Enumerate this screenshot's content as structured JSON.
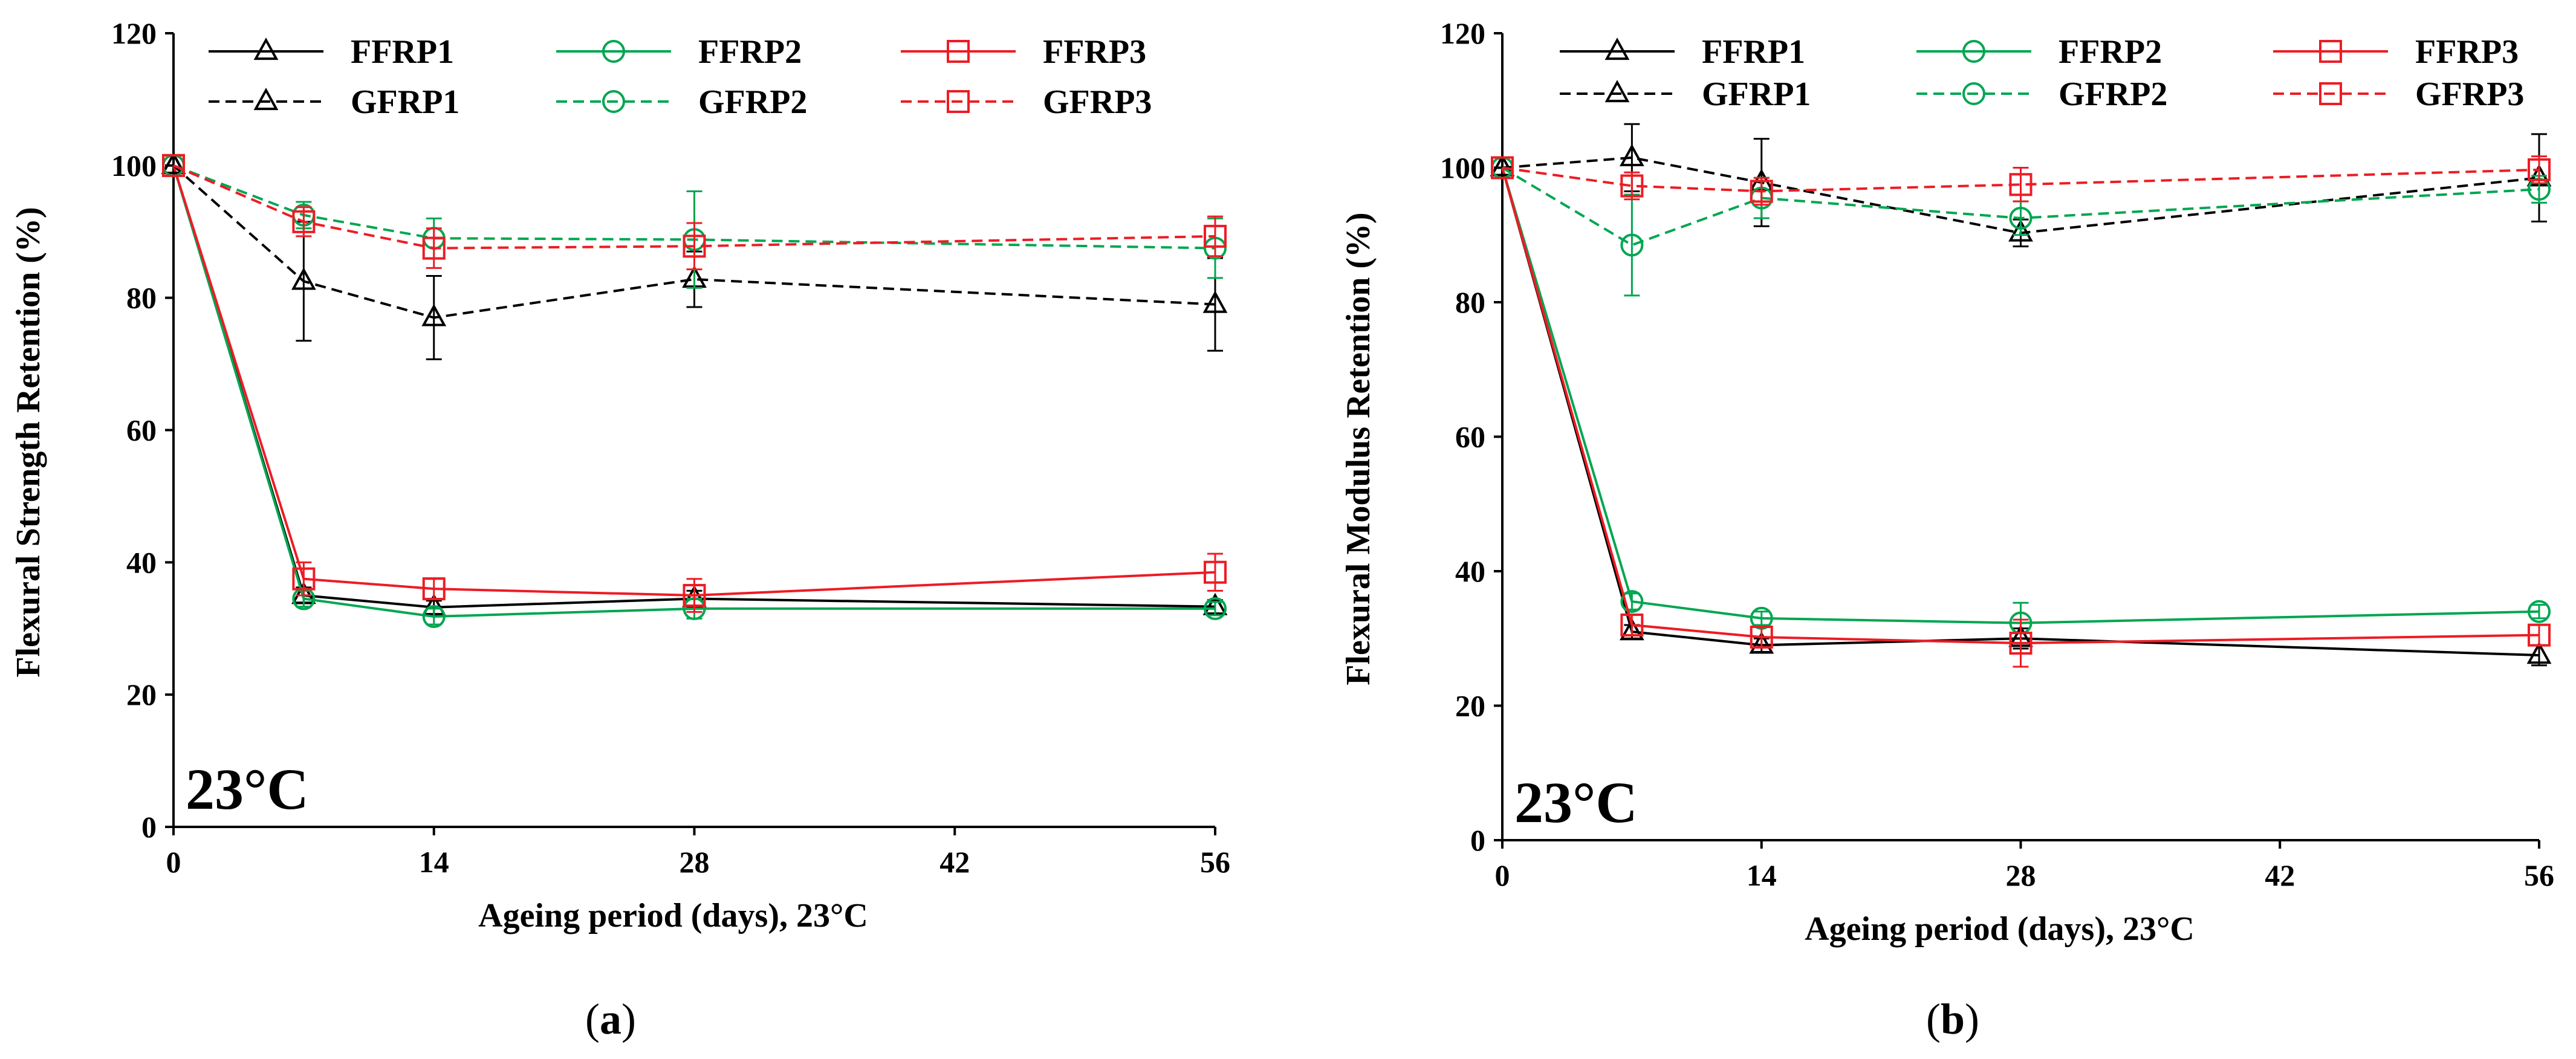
{
  "chart_data": [
    {
      "type": "line",
      "panel_label": "(a)",
      "panel_letter": "a",
      "annotation": "23°C",
      "xlabel": "Ageing period (days), 23°C",
      "ylabel": "Flexural Strength Retention (%)",
      "xlim": [
        0,
        56
      ],
      "ylim": [
        0,
        120
      ],
      "xticks": [
        0,
        14,
        28,
        42,
        56
      ],
      "yticks": [
        0,
        20,
        40,
        60,
        80,
        100,
        120
      ],
      "grid": false,
      "legend_position": "top",
      "series": [
        {
          "name": "FFRP1",
          "color": "#000000",
          "dash": "solid",
          "marker": "triangle",
          "x": [
            0,
            7,
            14,
            28,
            56
          ],
          "y": [
            100,
            35,
            33.2,
            34.5,
            33.3
          ],
          "err": [
            0,
            1.2,
            1.0,
            1.2,
            1.0
          ]
        },
        {
          "name": "FFRP2",
          "color": "#00A651",
          "dash": "solid",
          "marker": "circle",
          "x": [
            0,
            7,
            14,
            28,
            56
          ],
          "y": [
            100,
            34.5,
            31.8,
            33,
            33
          ],
          "err": [
            0,
            1.2,
            1.2,
            1.5,
            1.0
          ]
        },
        {
          "name": "FFRP3",
          "color": "#ED1C24",
          "dash": "solid",
          "marker": "square",
          "x": [
            0,
            7,
            14,
            28,
            56
          ],
          "y": [
            100,
            37.5,
            36,
            35,
            38.5
          ],
          "err": [
            0,
            2.5,
            1.5,
            2.5,
            2.8
          ]
        },
        {
          "name": "GFRP1",
          "color": "#000000",
          "dash": "dashed",
          "marker": "triangle",
          "x": [
            0,
            7,
            14,
            28,
            56
          ],
          "y": [
            100,
            82.5,
            77,
            82.8,
            79
          ],
          "err": [
            0,
            9,
            6.3,
            4.2,
            7
          ]
        },
        {
          "name": "GFRP2",
          "color": "#00A651",
          "dash": "dashed",
          "marker": "circle",
          "x": [
            0,
            7,
            14,
            28,
            56
          ],
          "y": [
            100,
            92.5,
            89,
            88.8,
            87.5
          ],
          "err": [
            0,
            2,
            3,
            7.3,
            4.5
          ]
        },
        {
          "name": "GFRP3",
          "color": "#ED1C24",
          "dash": "dashed",
          "marker": "square",
          "x": [
            0,
            7,
            14,
            28,
            56
          ],
          "y": [
            100,
            91.5,
            87.5,
            87.8,
            89.3
          ],
          "err": [
            0,
            2.2,
            3,
            3.5,
            3
          ]
        }
      ]
    },
    {
      "type": "line",
      "panel_label": "(b)",
      "panel_letter": "b",
      "annotation": "23°C",
      "xlabel": "Ageing period (days), 23°C",
      "ylabel": "Flexural Modulus Retention (%)",
      "xlim": [
        0,
        56
      ],
      "ylim": [
        0,
        120
      ],
      "xticks": [
        0,
        14,
        28,
        42,
        56
      ],
      "yticks": [
        0,
        20,
        40,
        60,
        80,
        100,
        120
      ],
      "grid": false,
      "legend_position": "top",
      "series": [
        {
          "name": "FFRP1",
          "color": "#000000",
          "dash": "solid",
          "marker": "triangle",
          "x": [
            0,
            7,
            14,
            28,
            56
          ],
          "y": [
            100,
            31,
            29,
            30,
            27.5
          ],
          "err": [
            0,
            1,
            1,
            1.5,
            1.5
          ]
        },
        {
          "name": "FFRP2",
          "color": "#00A651",
          "dash": "solid",
          "marker": "circle",
          "x": [
            0,
            7,
            14,
            28,
            56
          ],
          "y": [
            100,
            35.5,
            33,
            32.3,
            34
          ],
          "err": [
            0,
            1.2,
            1,
            3,
            1
          ]
        },
        {
          "name": "FFRP3",
          "color": "#ED1C24",
          "dash": "solid",
          "marker": "square",
          "x": [
            0,
            7,
            14,
            28,
            56
          ],
          "y": [
            100,
            32,
            30.2,
            29.3,
            30.5
          ],
          "err": [
            0,
            1.5,
            1.5,
            3.5,
            1.5
          ]
        },
        {
          "name": "GFRP1",
          "color": "#000000",
          "dash": "dashed",
          "marker": "triangle",
          "x": [
            0,
            7,
            14,
            28,
            56
          ],
          "y": [
            100,
            101.5,
            97.8,
            90.3,
            98.5
          ],
          "err": [
            0,
            5,
            6.5,
            2,
            6.5
          ]
        },
        {
          "name": "GFRP2",
          "color": "#00A651",
          "dash": "dashed",
          "marker": "circle",
          "x": [
            0,
            7,
            14,
            28,
            56
          ],
          "y": [
            100,
            88.5,
            95.5,
            92.5,
            96.8
          ],
          "err": [
            0,
            7.5,
            3,
            2.5,
            2
          ]
        },
        {
          "name": "GFRP3",
          "color": "#ED1C24",
          "dash": "dashed",
          "marker": "square",
          "x": [
            0,
            7,
            14,
            28,
            56
          ],
          "y": [
            100,
            97.3,
            96.5,
            97.5,
            99.7
          ],
          "err": [
            0,
            2,
            2,
            2.5,
            2
          ]
        }
      ]
    }
  ]
}
